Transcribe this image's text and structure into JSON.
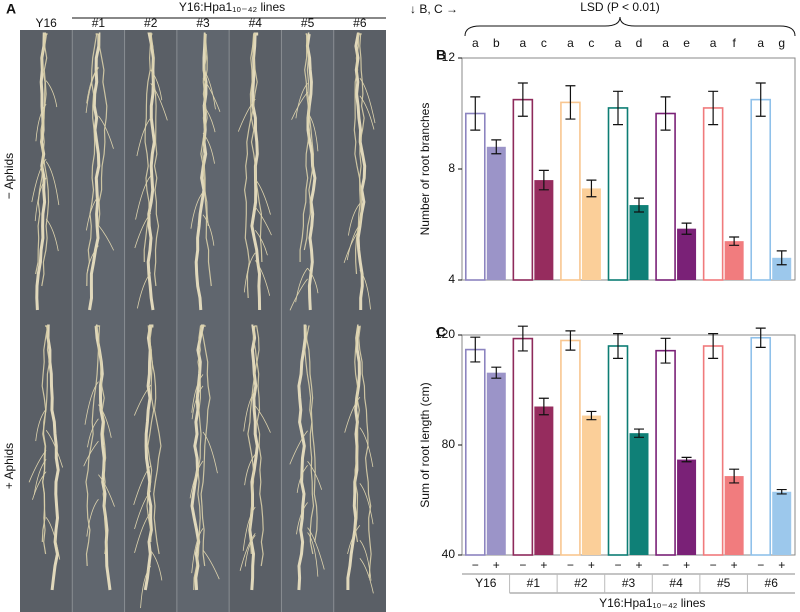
{
  "panel_a": {
    "label": "A",
    "columns": [
      "Y16",
      "#1",
      "#2",
      "#3",
      "#4",
      "#5",
      "#6"
    ],
    "group_label": "Y16:Hpa1₁₀₋₄₂ lines",
    "rows": [
      "− Aphids",
      "+ Aphids"
    ]
  },
  "header": {
    "arrow_note": "↓ B, C →",
    "test": "LSD (P < 0.01)"
  },
  "chart_data": [
    {
      "type": "bar",
      "panel": "B",
      "ylabel": "Number of root branches",
      "ylim": [
        4,
        12
      ],
      "yticks": [
        4,
        8,
        12
      ],
      "series": [
        {
          "name": "−",
          "fill": false,
          "colors": [
            "#8c84c0",
            "#8e2a5b",
            "#f8c690",
            "#0d7d74",
            "#7a2177",
            "#f07a7c",
            "#8fc1ea"
          ],
          "values": [
            10.0,
            10.5,
            10.4,
            10.2,
            10.0,
            10.2,
            10.5
          ],
          "errors": [
            0.6,
            0.6,
            0.6,
            0.6,
            0.6,
            0.6,
            0.6
          ],
          "letters": [
            "a",
            "a",
            "a",
            "a",
            "a",
            "a",
            "a"
          ]
        },
        {
          "name": "+",
          "fill": true,
          "colors": [
            "#9b94c8",
            "#962c5e",
            "#fbcf99",
            "#0f8077",
            "#7a2177",
            "#f17c7e",
            "#9cc8ec"
          ],
          "values": [
            8.8,
            7.6,
            7.3,
            6.7,
            5.85,
            5.4,
            4.8
          ],
          "errors": [
            0.25,
            0.35,
            0.3,
            0.25,
            0.2,
            0.15,
            0.25
          ],
          "letters": [
            "b",
            "c",
            "c",
            "d",
            "e",
            "f",
            "g"
          ]
        }
      ]
    },
    {
      "type": "bar",
      "panel": "C",
      "ylabel": "Sum of root length (cm)",
      "xlabel": "Y16:Hpa1₁₀₋₄₂ lines",
      "ylim": [
        40,
        120
      ],
      "yticks": [
        40,
        80,
        120
      ],
      "categories": [
        "Y16",
        "#1",
        "#2",
        "#3",
        "#4",
        "#5",
        "#6"
      ],
      "series": [
        {
          "name": "−",
          "fill": false,
          "colors": [
            "#8c84c0",
            "#8e2a5b",
            "#f8c690",
            "#0d7d74",
            "#7a2177",
            "#f07a7c",
            "#8fc1ea"
          ],
          "values": [
            114.7,
            118.7,
            118,
            116,
            114.3,
            116,
            119
          ],
          "errors": [
            4.5,
            4.5,
            3.5,
            4.5,
            4.5,
            4.5,
            3.5
          ]
        },
        {
          "name": "+",
          "fill": true,
          "colors": [
            "#9b94c8",
            "#962c5e",
            "#fbcf99",
            "#0f8077",
            "#7a2177",
            "#f17c7e",
            "#9cc8ec"
          ],
          "values": [
            106.3,
            94,
            90.7,
            84.3,
            74.7,
            68.7,
            63
          ],
          "errors": [
            2,
            3,
            1.5,
            1.5,
            0.8,
            2.5,
            0.8
          ]
        }
      ]
    }
  ]
}
